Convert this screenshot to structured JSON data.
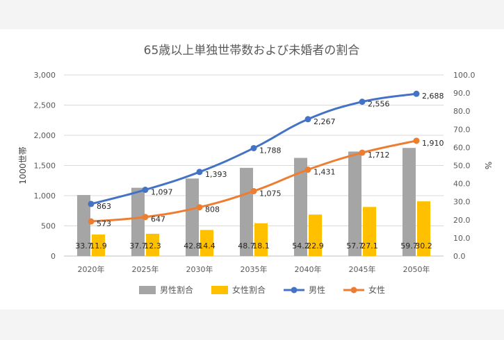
{
  "chart_data": {
    "type": "bar+line",
    "title": "65歳以上単独世帯数および未婚者の割合",
    "categories": [
      "2020年",
      "2025年",
      "2030年",
      "2035年",
      "2040年",
      "2045年",
      "2050年"
    ],
    "left_axis": {
      "label": "1000世帯",
      "ylim": [
        0,
        3000
      ],
      "ticks": [
        0,
        500,
        1000,
        1500,
        2000,
        2500,
        3000
      ],
      "tick_labels": [
        "0",
        "500",
        "1,000",
        "1,500",
        "2,000",
        "2,500",
        "3,000"
      ]
    },
    "right_axis": {
      "label": "%",
      "ylim": [
        0,
        100
      ],
      "ticks": [
        0,
        10,
        20,
        30,
        40,
        50,
        60,
        70,
        80,
        90,
        100
      ],
      "tick_labels": [
        "0.0",
        "10.0",
        "20.0",
        "30.0",
        "40.0",
        "50.0",
        "60.0",
        "70.0",
        "80.0",
        "90.0",
        "100.0"
      ]
    },
    "series": [
      {
        "name": "男性割合",
        "kind": "bar",
        "axis": "right",
        "color": "#a5a5a5",
        "values": [
          33.7,
          37.7,
          42.8,
          48.7,
          54.2,
          57.7,
          59.7
        ],
        "labels": [
          "33.7",
          "37.7",
          "42.8",
          "48.7",
          "54.2",
          "57.7",
          "59.7"
        ]
      },
      {
        "name": "女性割合",
        "kind": "bar",
        "axis": "right",
        "color": "#ffc000",
        "values": [
          11.9,
          12.3,
          14.4,
          18.1,
          22.9,
          27.1,
          30.2
        ],
        "labels": [
          "11.9",
          "12.3",
          "14.4",
          "18.1",
          "22.9",
          "27.1",
          "30.2"
        ]
      },
      {
        "name": "男性",
        "kind": "line",
        "axis": "left",
        "color": "#4472c4",
        "values": [
          863,
          1097,
          1393,
          1788,
          2267,
          2556,
          2688
        ],
        "labels": [
          "863",
          "1,097",
          "1,393",
          "1,788",
          "2,267",
          "2,556",
          "2,688"
        ]
      },
      {
        "name": "女性",
        "kind": "line",
        "axis": "left",
        "color": "#ed7d31",
        "values": [
          573,
          647,
          808,
          1075,
          1431,
          1712,
          1910
        ],
        "labels": [
          "573",
          "647",
          "808",
          "1,075",
          "1,431",
          "1,712",
          "1,910"
        ]
      }
    ],
    "legend_position": "bottom",
    "grid": true
  }
}
